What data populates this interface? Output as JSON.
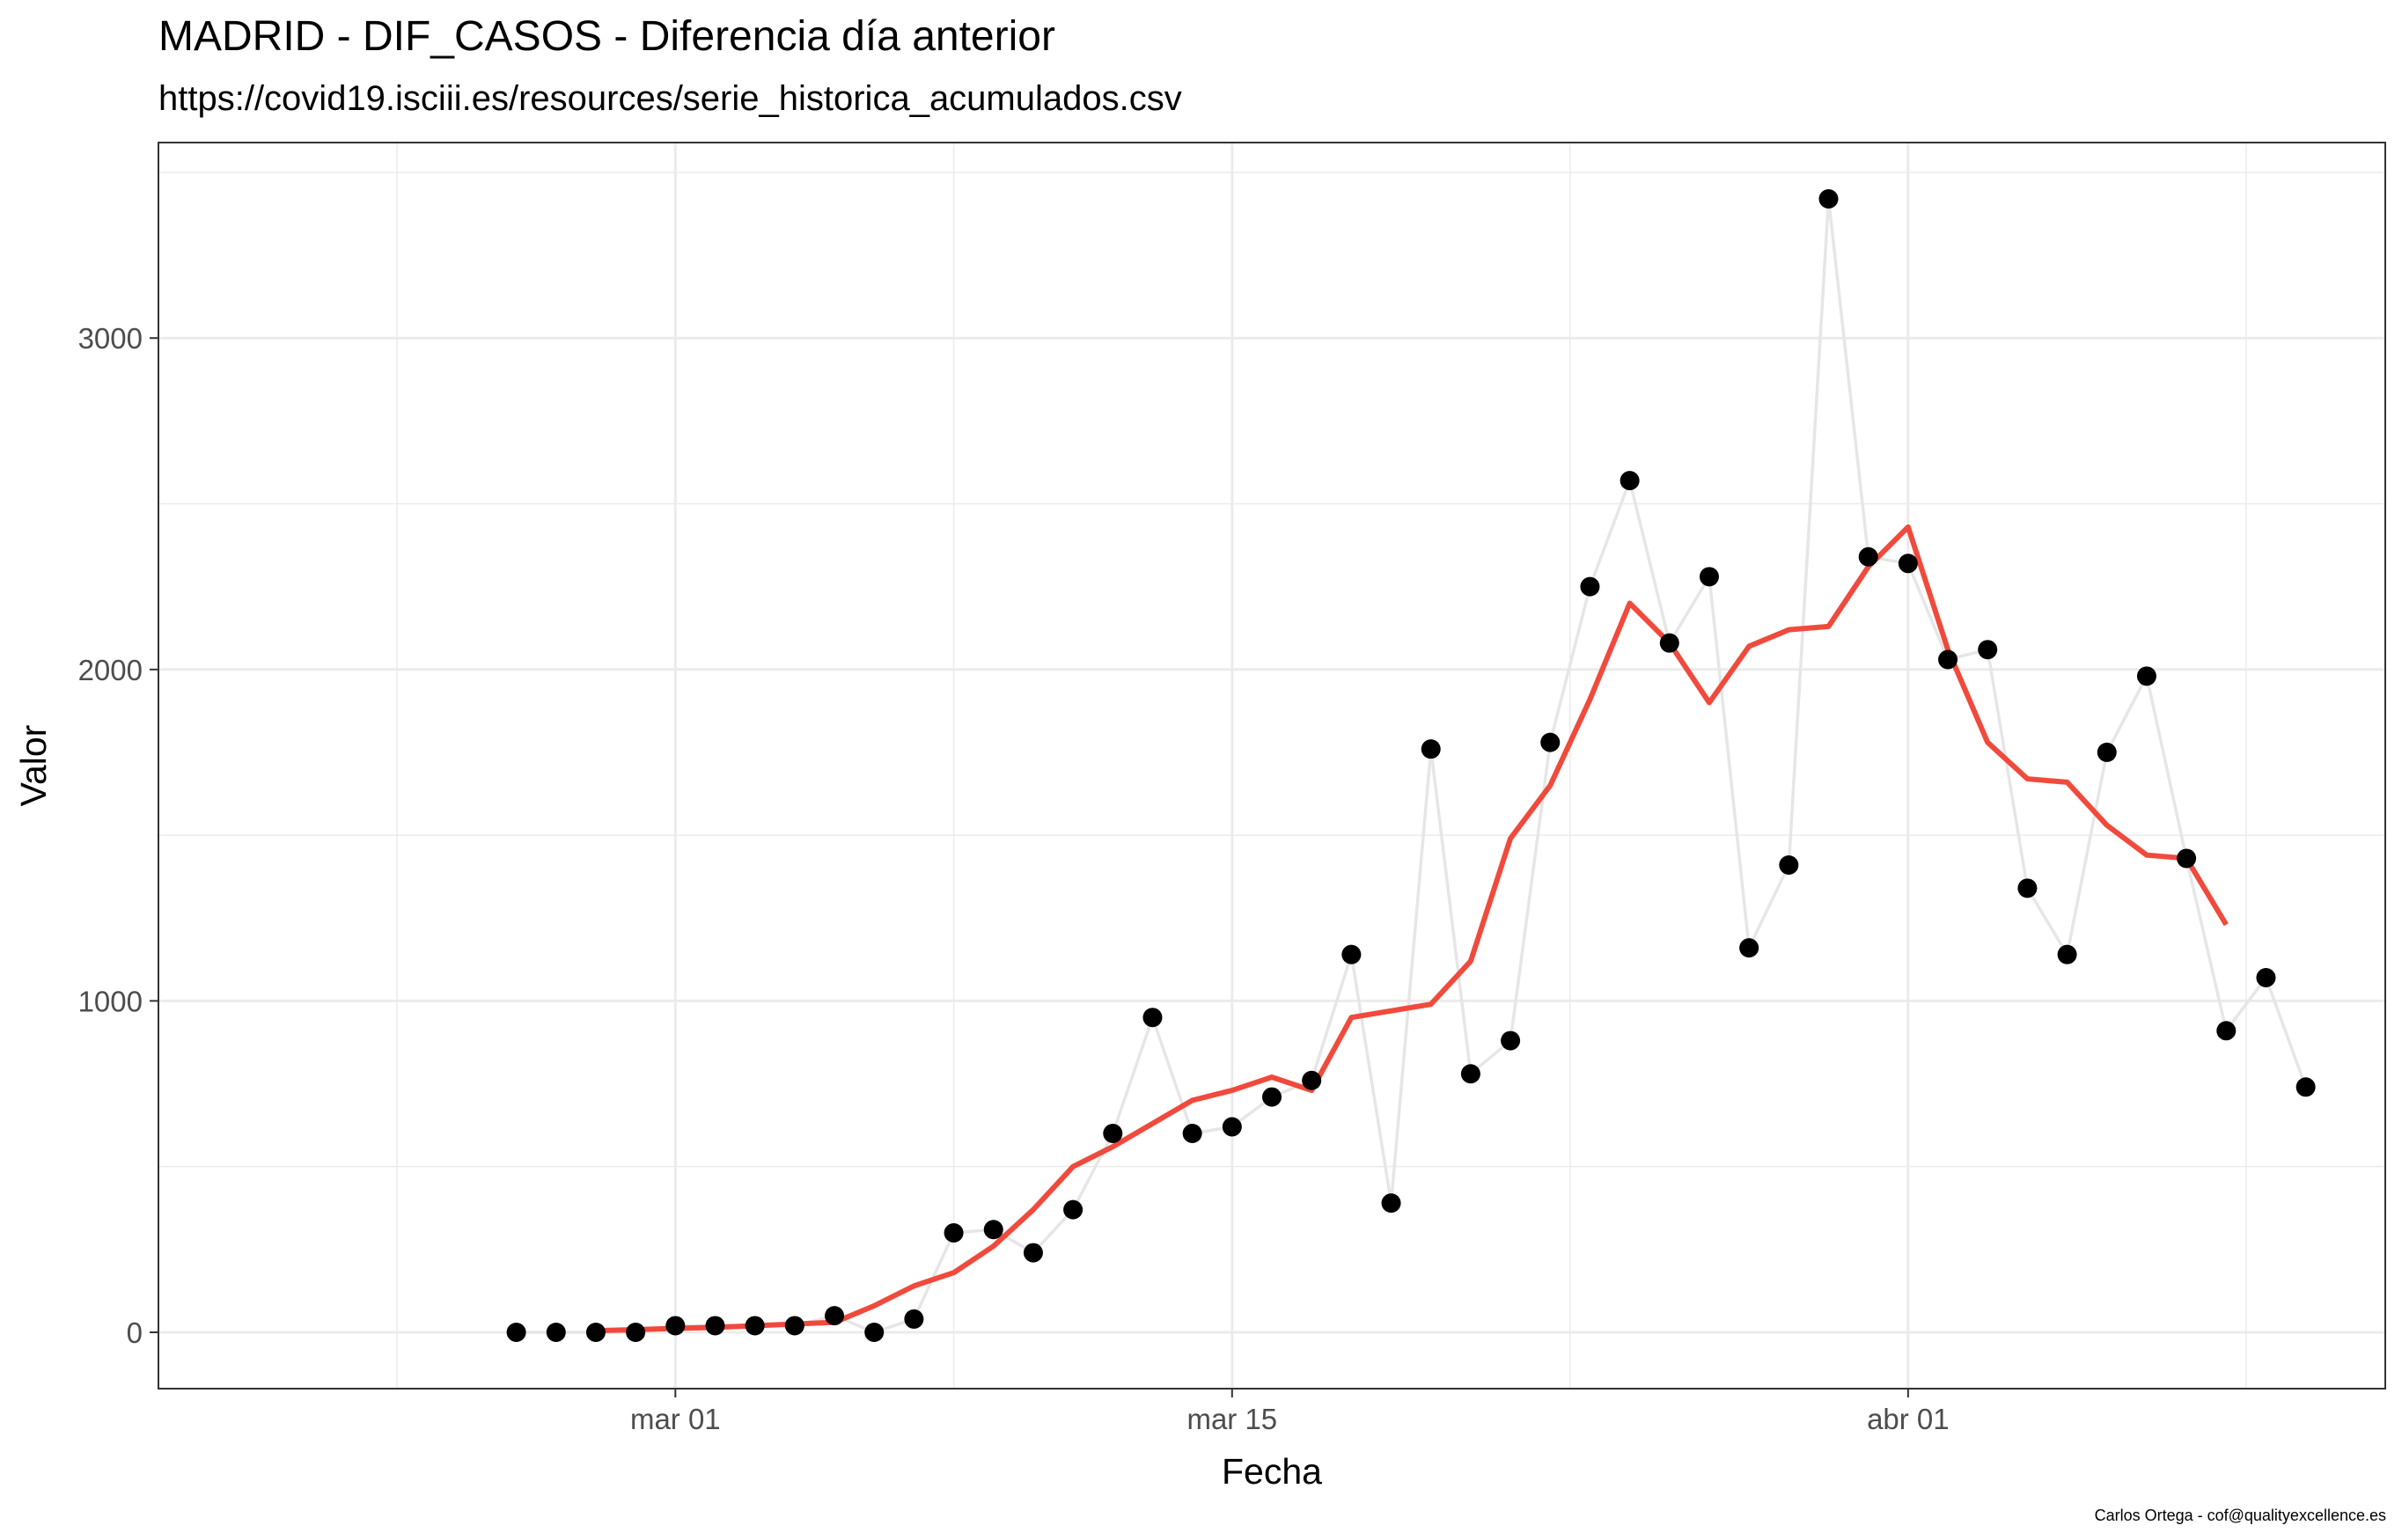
{
  "title": "MADRID - DIF_CASOS - Diferencia día anterior",
  "subtitle": "https://covid19.isciii.es/resources/serie_historica_acumulados.csv",
  "caption": "Carlos Ortega - cof@qualityexcellence.es",
  "colors": {
    "points": "#000000",
    "connector": "#e6e6e6",
    "trend": "#f04a3c",
    "grid": "#ebebeb",
    "panel_border": "#333333"
  },
  "chart_data": {
    "type": "line",
    "title": "MADRID - DIF_CASOS - Diferencia día anterior",
    "xlabel": "Fecha",
    "ylabel": "Valor",
    "x_ticks": [
      {
        "date": "2020-03-01",
        "label": "mar 01"
      },
      {
        "date": "2020-03-15",
        "label": "mar 15"
      },
      {
        "date": "2020-04-01",
        "label": "abr 01"
      }
    ],
    "y_ticks": [
      0,
      1000,
      2000,
      3000
    ],
    "xlim": [
      "2020-02-17",
      "2020-04-13"
    ],
    "ylim": [
      -170,
      3590
    ],
    "grid": true,
    "series": [
      {
        "kind": "points-with-line",
        "x": [
          "2020-02-26",
          "2020-02-27",
          "2020-02-28",
          "2020-02-29",
          "2020-03-01",
          "2020-03-02",
          "2020-03-03",
          "2020-03-04",
          "2020-03-05",
          "2020-03-06",
          "2020-03-07",
          "2020-03-08",
          "2020-03-09",
          "2020-03-10",
          "2020-03-11",
          "2020-03-12",
          "2020-03-13",
          "2020-03-14",
          "2020-03-15",
          "2020-03-16",
          "2020-03-17",
          "2020-03-18",
          "2020-03-19",
          "2020-03-20",
          "2020-03-21",
          "2020-03-22",
          "2020-03-23",
          "2020-03-24",
          "2020-03-25",
          "2020-03-26",
          "2020-03-27",
          "2020-03-28",
          "2020-03-29",
          "2020-03-30",
          "2020-03-31",
          "2020-04-01",
          "2020-04-02",
          "2020-04-03",
          "2020-04-04",
          "2020-04-05",
          "2020-04-06",
          "2020-04-07",
          "2020-04-08",
          "2020-04-09",
          "2020-04-10",
          "2020-04-11"
        ],
        "values": [
          0,
          0,
          0,
          0,
          20,
          20,
          20,
          20,
          50,
          0,
          40,
          300,
          310,
          240,
          370,
          600,
          950,
          600,
          620,
          710,
          760,
          1140,
          390,
          1760,
          780,
          880,
          1780,
          2250,
          2570,
          2080,
          2280,
          1160,
          1410,
          3420,
          2340,
          2320,
          2030,
          2060,
          1340,
          1140,
          1750,
          1980,
          1430,
          910,
          1070,
          740
        ]
      },
      {
        "kind": "trend",
        "x": [
          "2020-02-28",
          "2020-02-29",
          "2020-03-01",
          "2020-03-02",
          "2020-03-03",
          "2020-03-04",
          "2020-03-05",
          "2020-03-06",
          "2020-03-07",
          "2020-03-08",
          "2020-03-09",
          "2020-03-10",
          "2020-03-11",
          "2020-03-12",
          "2020-03-13",
          "2020-03-14",
          "2020-03-15",
          "2020-03-16",
          "2020-03-17",
          "2020-03-18",
          "2020-03-19",
          "2020-03-20",
          "2020-03-21",
          "2020-03-22",
          "2020-03-23",
          "2020-03-24",
          "2020-03-25",
          "2020-03-26",
          "2020-03-27",
          "2020-03-28",
          "2020-03-29",
          "2020-03-30",
          "2020-03-31",
          "2020-04-01",
          "2020-04-02",
          "2020-04-03",
          "2020-04-04",
          "2020-04-05",
          "2020-04-06",
          "2020-04-07",
          "2020-04-08",
          "2020-04-09"
        ],
        "values": [
          5,
          8,
          12,
          15,
          20,
          25,
          30,
          80,
          140,
          180,
          260,
          370,
          500,
          560,
          630,
          700,
          730,
          770,
          730,
          950,
          970,
          990,
          1120,
          1490,
          1650,
          1910,
          2200,
          2080,
          1900,
          2070,
          2120,
          2130,
          2310,
          2430,
          2060,
          1780,
          1670,
          1660,
          1530,
          1440,
          1430,
          1230
        ]
      }
    ]
  }
}
